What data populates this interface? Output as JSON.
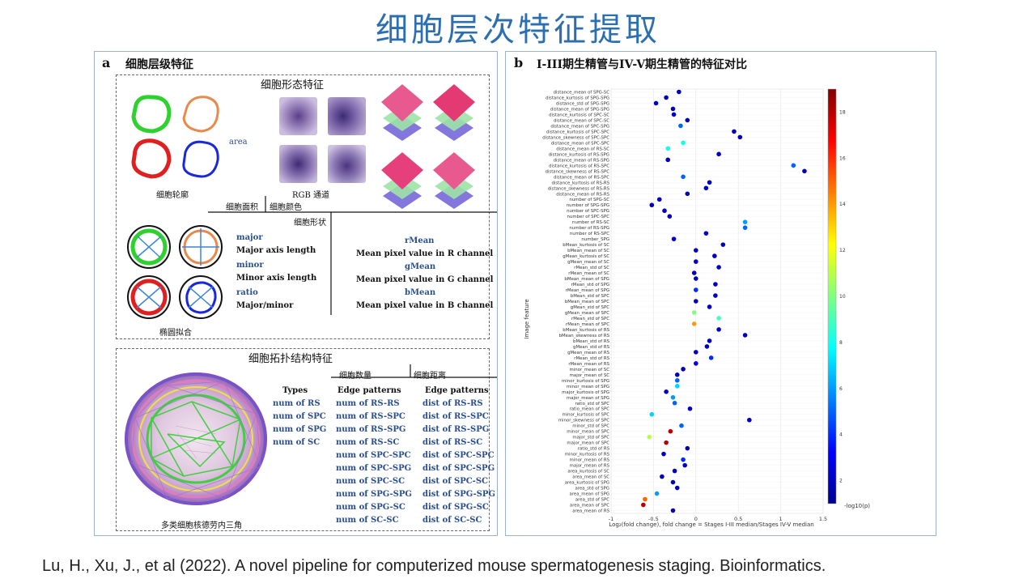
{
  "title": "细胞层次特征提取",
  "citation": "Lu, H., Xu, J., et al (2022). A novel pipeline for computerized mouse spermatogenesis staging. Bioinformatics.",
  "panel_a": {
    "label": "a",
    "title": "细胞层级特征",
    "morph_title": "细胞形态特征",
    "contour_label": "细胞轮廓",
    "area_label": "area",
    "rgb_label": "RGB 通道",
    "area_branch": "细胞面积",
    "color_branch": "细胞颜色",
    "shape_branch": "细胞形状",
    "ellipse_label": "椭圆拟合",
    "shape_features": [
      {
        "name": "major",
        "desc": "Major axis length"
      },
      {
        "name": "minor",
        "desc": "Minor axis length"
      },
      {
        "name": "ratio",
        "desc": "Major/minor"
      }
    ],
    "color_features": [
      {
        "name": "rMean",
        "desc": "Mean pixel value in R channel"
      },
      {
        "name": "gMean",
        "desc": "Mean pixel value in G channel"
      },
      {
        "name": "bMean",
        "desc": "Mean pixel value in B channel"
      }
    ],
    "topo_title": "细胞拓扑结构特征",
    "count_branch": "细胞数量",
    "dist_branch": "细胞距离",
    "delaunay_label": "多类细胞核德劳内三角",
    "types_header": "Types",
    "types": [
      "num of RS",
      "num of SPC",
      "num of SPG",
      "num of SC"
    ],
    "edge_header": "Edge patterns",
    "edge_num": [
      "num of RS-RS",
      "num of RS-SPC",
      "num of RS-SPG",
      "num of RS-SC",
      "num of SPC-SPC",
      "num of SPC-SPG",
      "num of SPC-SC",
      "num of SPG-SPG",
      "num of SPG-SC",
      "num of SC-SC"
    ],
    "edge_dist": [
      "dist of RS-RS",
      "dist of RS-SPC",
      "dist of RS-SPG",
      "dist of RS-SC",
      "dist of SPC-SPC",
      "dist of SPC-SPG",
      "dist of SPC-SC",
      "dist of SPG-SPG",
      "dist of SPG-SC",
      "dist of SC-SC"
    ]
  },
  "panel_b": {
    "label": "b",
    "title": "I-III期生精管与IV-V期生精管的特征对比"
  },
  "chart_data": {
    "type": "scatter",
    "xlabel": "Log₂(fold change), fold change = Stages I-III median/Stages IV-V median",
    "ylabel": "Image feature",
    "xlim": [
      -1,
      1.5
    ],
    "xticks": [
      -1,
      -0.5,
      0,
      0.5,
      1,
      1.5
    ],
    "colorbar_label": "-log10(p)",
    "colorbar_ticks": [
      2,
      4,
      6,
      8,
      10,
      12,
      14,
      16,
      18
    ],
    "colorbar_range": [
      1,
      19
    ],
    "grid": true,
    "features": [
      "distance_mean of SPG-SC",
      "distance_kurtosis of SPG-SPG",
      "distance_std of SPG-SPG",
      "distance_mean of SPG-SPG",
      "distance_kurtosis of SPC-SC",
      "distance_mean of SPC-SC",
      "distance_mean of SPC-SPG",
      "distance_kurtosis of SPC-SPC",
      "distance_skewness of SPC-SPC",
      "distance_mean of SPC-SPC",
      "distance_mean of RS-SC",
      "distance_kurtosis of RS-SPG",
      "distance_mean of RS-SPG",
      "distance_kurtosis of RS-SPC",
      "distance_skewness of RS-SPC",
      "distance_mean of RS-SPC",
      "distance_kurtosis of RS-RS",
      "distance_skewness of RS-RS",
      "distance_mean of RS-RS",
      "number of SPG-SC",
      "number of SPG-SPG",
      "number of SPC-SPG",
      "number of SPC-SPC",
      "number of RS-SC",
      "number of RS-SPG",
      "number of RS-SPC",
      "number_SPG",
      "bMean_kurtosis of SC",
      "bMean_mean of SC",
      "gMean_kurtosis of SC",
      "gMean_mean of SC",
      "rMean_std of SC",
      "rMean_mean of SC",
      "bMean_mean of SPG",
      "rMean_std of SPG",
      "rMean_mean of SPG",
      "bMean_std of SPC",
      "bMean_mean of SPC",
      "gMean_std of SPC",
      "gMean_mean of SPC",
      "rMean_std of SPC",
      "rMean_mean of SPC",
      "bMean_kurtosis of RS",
      "bMean_skewness of RS",
      "bMean_std of RS",
      "gMean_std of RS",
      "gMean_mean of RS",
      "rMean_std of RS",
      "rMean_mean of RS",
      "minor_mean of SC",
      "major_mean of SC",
      "minor_kurtosis of SPG",
      "minor_mean of SPG",
      "major_kurtosis of SPG",
      "major_mean of SPG",
      "ratio_std of SPC",
      "ratio_mean of SPC",
      "minor_kurtosis of SPC",
      "minor_skewness of SPC",
      "minor_std of SPC",
      "minor_mean of SPC",
      "major_std of SPC",
      "major_mean of SPC",
      "ratio_std of RS",
      "minor_kurtosis of RS",
      "minor_mean of RS",
      "major_mean of RS",
      "area_kurtosis of SC",
      "area_mean of SC",
      "area_kurtosis of SPG",
      "area_std of SPG",
      "area_mean of SPG",
      "area_std of SPC",
      "area_mean of SPC",
      "area_mean of RS"
    ],
    "x": [
      -0.2,
      -0.35,
      -0.47,
      -0.27,
      -0.26,
      -0.1,
      -0.18,
      0.45,
      0.52,
      -0.15,
      -0.33,
      0.27,
      -0.33,
      1.15,
      1.28,
      -0.15,
      0.16,
      0.12,
      -0.1,
      -0.43,
      -0.52,
      -0.37,
      -0.31,
      0.58,
      0.58,
      0.12,
      -0.26,
      0.32,
      0.0,
      0.22,
      0.0,
      0.27,
      -0.02,
      0.0,
      0.23,
      0.0,
      0.23,
      0.0,
      0.16,
      -0.02,
      0.27,
      -0.02,
      0.27,
      0.58,
      0.16,
      0.13,
      0.0,
      0.18,
      0.0,
      -0.15,
      -0.22,
      -0.22,
      -0.22,
      -0.35,
      -0.27,
      -0.25,
      -0.07,
      -0.52,
      0.63,
      -0.17,
      -0.3,
      -0.55,
      -0.35,
      -0.1,
      -0.38,
      -0.15,
      -0.13,
      -0.25,
      -0.4,
      -0.27,
      -0.22,
      -0.46,
      -0.6,
      -0.62,
      -0.27
    ],
    "neg_log10_p": [
      2,
      2,
      2,
      2,
      2,
      2,
      5,
      2,
      2,
      8,
      8,
      2,
      2,
      5,
      2,
      5,
      2,
      2,
      2,
      2,
      2,
      2,
      2,
      6,
      5,
      2,
      2,
      2,
      2,
      2,
      2,
      2,
      2,
      2,
      2,
      4,
      2,
      2,
      2,
      10,
      9,
      14,
      2,
      2,
      2,
      2,
      2,
      4,
      3,
      2,
      2,
      5,
      7,
      2,
      6,
      5,
      2,
      7,
      2,
      5,
      18,
      11,
      18,
      2,
      2,
      4,
      2,
      2,
      2,
      2,
      2,
      6,
      15,
      18,
      2
    ]
  }
}
